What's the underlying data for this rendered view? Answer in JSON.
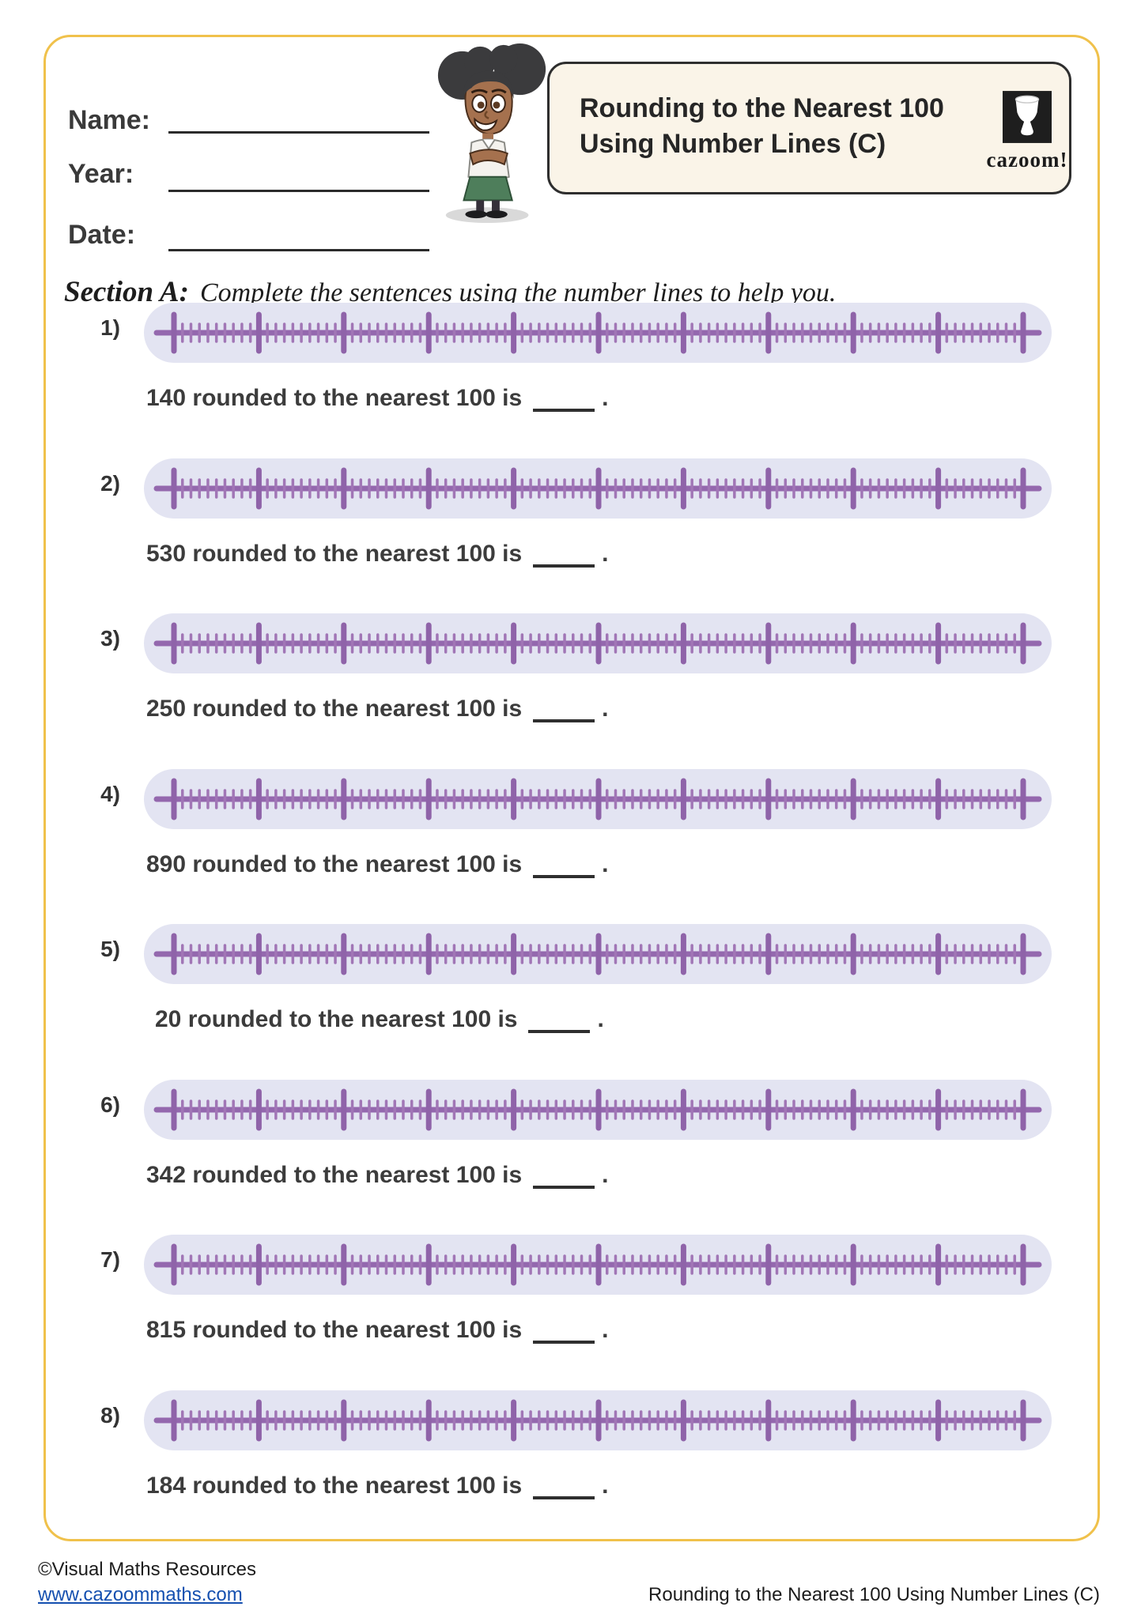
{
  "header": {
    "fields": [
      {
        "label": "Name:"
      },
      {
        "label": "Year:"
      },
      {
        "label": "Date:"
      }
    ],
    "title_line1": "Rounding to the Nearest 100",
    "title_line2": "Using Number Lines (C)",
    "logo_text": "cazoom!"
  },
  "section": {
    "label": "Section A:",
    "instruction": "Complete the sentences using the number lines to help you."
  },
  "questions": [
    {
      "num_label": "1)",
      "sentence": "140 rounded to the nearest 100 is",
      "suffix": "."
    },
    {
      "num_label": "2)",
      "sentence": "530 rounded to the nearest 100 is",
      "suffix": "."
    },
    {
      "num_label": "3)",
      "sentence": "250 rounded to the nearest 100 is",
      "suffix": "."
    },
    {
      "num_label": "4)",
      "sentence": "890 rounded to the nearest 100 is",
      "suffix": "."
    },
    {
      "num_label": "5)",
      "sentence": "20 rounded to the nearest 100 is",
      "suffix": "."
    },
    {
      "num_label": "6)",
      "sentence": "342 rounded to the nearest 100 is",
      "suffix": "."
    },
    {
      "num_label": "7)",
      "sentence": "815 rounded to the nearest 100 is",
      "suffix": "."
    },
    {
      "num_label": "8)",
      "sentence": "184 rounded to the nearest 100 is",
      "suffix": "."
    }
  ],
  "number_line": {
    "major_ticks": 11,
    "minor_per_gap": 9,
    "major_color": "#8f63a9",
    "minor_color": "#a176b6",
    "line_color": "#9468ae"
  },
  "colors": {
    "page_border": "#f0c14b",
    "panel_background": "#e3e4f2",
    "title_box_background": "#faf4e8",
    "title_box_border": "#2e2e2e",
    "link_blue": "#1550b0",
    "text_dark": "#3c3c3c"
  },
  "footer": {
    "copyright": "©Visual Maths Resources",
    "link": "www.cazoommaths.com",
    "doc_title": "Rounding to the Nearest 100 Using Number Lines (C)"
  }
}
